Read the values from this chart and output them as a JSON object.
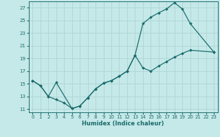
{
  "xlabel": "Humidex (Indice chaleur)",
  "bg_color": "#c5e8e8",
  "line_color": "#1a6b6b",
  "grid_color": "#aed4d4",
  "xlim": [
    -0.5,
    23.5
  ],
  "ylim": [
    10.5,
    28.0
  ],
  "xticks": [
    0,
    1,
    2,
    3,
    4,
    5,
    6,
    7,
    8,
    9,
    10,
    11,
    12,
    13,
    14,
    15,
    16,
    17,
    18,
    19,
    20,
    21,
    22,
    23
  ],
  "yticks": [
    11,
    13,
    15,
    17,
    19,
    21,
    23,
    25,
    27
  ],
  "line1_x": [
    0,
    1,
    2,
    3,
    5,
    6,
    7,
    8,
    9,
    10,
    11,
    12,
    13,
    14,
    15,
    16,
    17,
    18,
    19,
    20,
    23
  ],
  "line1_y": [
    15.5,
    14.7,
    13.0,
    15.2,
    11.1,
    11.5,
    12.8,
    14.2,
    15.1,
    15.5,
    16.2,
    17.0,
    19.5,
    24.5,
    25.5,
    26.2,
    26.8,
    27.8,
    26.8,
    24.5,
    20.0
  ],
  "line2_x": [
    0,
    1,
    2,
    3,
    4,
    5,
    6,
    7,
    8,
    9,
    10,
    11,
    12,
    13,
    14,
    15,
    16,
    17,
    18,
    19,
    20,
    23
  ],
  "line2_y": [
    15.5,
    14.7,
    13.0,
    12.5,
    12.0,
    11.1,
    11.5,
    12.8,
    14.2,
    15.1,
    15.5,
    16.2,
    17.0,
    19.5,
    17.5,
    17.0,
    17.8,
    18.5,
    19.2,
    19.8,
    20.3,
    20.0
  ]
}
